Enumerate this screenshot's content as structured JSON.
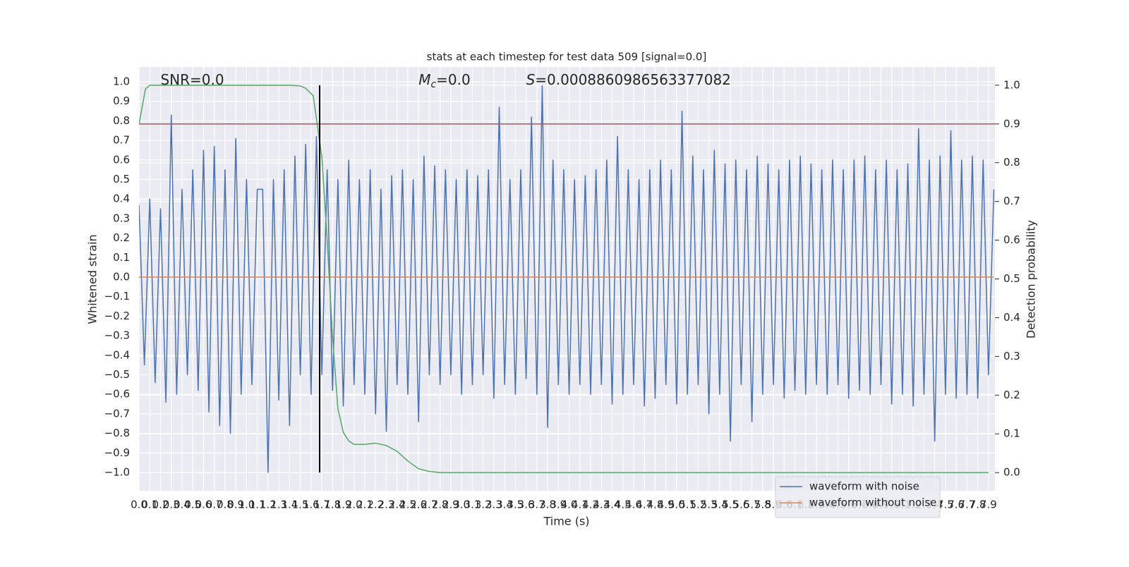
{
  "chart_data": {
    "type": "line",
    "title": "stats at each timestep for test data 509 [signal=0.0]",
    "xlabel": "Time (s)",
    "ylabel": "Whitened strain",
    "y2label": "Detection probability",
    "annotations": [
      {
        "text": "SNR=0.0",
        "x": 0.2,
        "y": 1.0
      },
      {
        "symbol": "M",
        "subscript": "c",
        "text": "=0.0",
        "x": 2.6,
        "y": 1.0
      },
      {
        "symbol": "S",
        "text": "=0.0008860986563377082",
        "x": 3.6,
        "y": 1.0
      }
    ],
    "xlim": [
      0,
      7.96
    ],
    "ylim": [
      -1.094,
      1.076
    ],
    "y2lim": [
      -0.047,
      1.047
    ],
    "xticks": [
      {
        "value": 0,
        "label": "0.0"
      },
      0.1,
      0.2,
      0.3,
      0.4,
      0.5,
      0.6,
      0.7,
      0.8,
      0.9,
      {
        "value": 1,
        "label": "1.0"
      },
      1.1,
      1.2,
      1.3,
      1.4,
      1.5,
      1.6,
      1.7,
      1.8,
      1.9,
      {
        "value": 2,
        "label": "2.0"
      },
      2.1,
      2.2,
      2.3,
      2.4,
      2.5,
      2.6,
      2.7,
      2.8,
      2.9,
      {
        "value": 3,
        "label": "3.0"
      },
      3.1,
      3.2,
      3.3,
      3.4,
      3.5,
      3.6,
      3.7,
      3.8,
      3.9,
      {
        "value": 4,
        "label": "4.0"
      },
      4.1,
      4.2,
      4.3,
      4.4,
      4.5,
      4.6,
      4.7,
      4.8,
      4.9,
      {
        "value": 5,
        "label": "5.0"
      },
      5.1,
      5.2,
      5.3,
      5.4,
      5.5,
      5.6,
      5.7,
      5.8,
      5.9,
      {
        "value": 6,
        "label": "6.0"
      },
      6.1,
      6.2,
      6.3,
      6.4,
      6.5,
      6.6,
      6.7,
      6.8,
      6.9,
      {
        "value": 7,
        "label": "7.0"
      },
      7.1,
      7.2,
      7.3,
      7.4,
      7.5,
      7.6,
      7.7,
      7.8,
      7.9
    ],
    "yticks": [
      {
        "value": -1,
        "label": "−1.0"
      },
      {
        "value": -0.9,
        "label": "−0.9"
      },
      {
        "value": -0.8,
        "label": "−0.8"
      },
      {
        "value": -0.7,
        "label": "−0.7"
      },
      {
        "value": -0.6,
        "label": "−0.6"
      },
      {
        "value": -0.5,
        "label": "−0.5"
      },
      {
        "value": -0.4,
        "label": "−0.4"
      },
      {
        "value": -0.3,
        "label": "−0.3"
      },
      {
        "value": -0.2,
        "label": "−0.2"
      },
      {
        "value": -0.1,
        "label": "−0.1"
      },
      {
        "value": 0,
        "label": "0.0"
      },
      0.1,
      0.2,
      0.3,
      0.4,
      0.5,
      0.6,
      0.7,
      0.8,
      0.9,
      {
        "value": 1,
        "label": "1.0"
      }
    ],
    "y2ticks": [
      {
        "value": 0,
        "label": "0.0"
      },
      0.1,
      0.2,
      0.3,
      0.4,
      0.5,
      0.6,
      0.7,
      0.8,
      0.9,
      {
        "value": 1,
        "label": "1.0"
      }
    ],
    "grid": true,
    "legend": "lower right",
    "hline": {
      "value": 0.9,
      "axis": "y2",
      "color": "#c44e52"
    },
    "vline": {
      "x": 1.68,
      "color": "#000000"
    },
    "series": [
      {
        "name": "waveform with noise",
        "color": "#4c72b0",
        "x": [
          0,
          0.05,
          0.1,
          0.15,
          0.2,
          0.25,
          0.3,
          0.35,
          0.4,
          0.45,
          0.5,
          0.55,
          0.6,
          0.65,
          0.7,
          0.75,
          0.8,
          0.85,
          0.9,
          0.95,
          1,
          1.05,
          1.1,
          1.15,
          1.2,
          1.25,
          1.3,
          1.35,
          1.4,
          1.45,
          1.5,
          1.55,
          1.6,
          1.65,
          1.7,
          1.75,
          1.8,
          1.85,
          1.9,
          1.95,
          2,
          2.05,
          2.1,
          2.15,
          2.2,
          2.25,
          2.3,
          2.35,
          2.4,
          2.45,
          2.5,
          2.55,
          2.6,
          2.65,
          2.7,
          2.75,
          2.8,
          2.85,
          2.9,
          2.95,
          3,
          3.05,
          3.1,
          3.15,
          3.2,
          3.25,
          3.3,
          3.35,
          3.4,
          3.45,
          3.5,
          3.55,
          3.6,
          3.65,
          3.7,
          3.75,
          3.8,
          3.85,
          3.9,
          3.95,
          4,
          4.05,
          4.1,
          4.15,
          4.2,
          4.25,
          4.3,
          4.35,
          4.4,
          4.45,
          4.5,
          4.55,
          4.6,
          4.65,
          4.7,
          4.75,
          4.8,
          4.85,
          4.9,
          4.95,
          5,
          5.05,
          5.1,
          5.15,
          5.2,
          5.25,
          5.3,
          5.35,
          5.4,
          5.45,
          5.5,
          5.55,
          5.6,
          5.65,
          5.7,
          5.75,
          5.8,
          5.85,
          5.9,
          5.95,
          6,
          6.05,
          6.1,
          6.15,
          6.2,
          6.25,
          6.3,
          6.35,
          6.4,
          6.45,
          6.5,
          6.55,
          6.6,
          6.65,
          6.7,
          6.75,
          6.8,
          6.85,
          6.9,
          6.95,
          7,
          7.05,
          7.1,
          7.15,
          7.2,
          7.25,
          7.3,
          7.35,
          7.4,
          7.45,
          7.5,
          7.55,
          7.6,
          7.65,
          7.7,
          7.75,
          7.8,
          7.85,
          7.9,
          7.95
        ],
        "values": [
          0.37,
          -0.45,
          0.4,
          -0.54,
          0.35,
          -0.64,
          0.83,
          -0.6,
          0.45,
          -0.5,
          0.55,
          -0.58,
          0.65,
          -0.69,
          0.67,
          -0.76,
          0.55,
          -0.8,
          0.71,
          -0.6,
          0.5,
          -0.55,
          0.45,
          0.45,
          -1.0,
          0.5,
          -0.63,
          0.55,
          -0.76,
          0.62,
          -0.5,
          0.68,
          -0.6,
          0.72,
          -0.5,
          0.55,
          -0.58,
          0.5,
          -0.66,
          0.6,
          -0.55,
          0.5,
          -0.6,
          0.55,
          -0.7,
          0.45,
          -0.79,
          0.52,
          -0.55,
          0.55,
          -0.6,
          0.5,
          -0.74,
          0.62,
          -0.5,
          0.57,
          -0.55,
          0.55,
          -0.5,
          0.5,
          -0.6,
          0.55,
          -0.55,
          0.52,
          -0.5,
          0.55,
          -0.62,
          0.87,
          -0.55,
          0.5,
          -0.6,
          0.55,
          -0.52,
          0.82,
          -0.6,
          0.98,
          -0.77,
          0.6,
          -0.55,
          0.55,
          -0.6,
          0.5,
          -0.55,
          0.52,
          -0.6,
          0.55,
          -0.55,
          0.6,
          -0.65,
          0.72,
          -0.6,
          0.55,
          -0.55,
          0.5,
          -0.66,
          0.55,
          -0.62,
          0.6,
          -0.55,
          0.55,
          -0.65,
          0.85,
          -0.6,
          0.62,
          -0.55,
          0.55,
          -0.7,
          0.65,
          -0.6,
          0.58,
          -0.84,
          0.6,
          -0.55,
          0.55,
          -0.74,
          0.62,
          -0.6,
          0.58,
          -0.55,
          0.55,
          -0.62,
          0.6,
          -0.58,
          0.62,
          -0.6,
          0.58,
          -0.55,
          0.55,
          -0.6,
          0.6,
          -0.55,
          0.55,
          -0.62,
          0.6,
          -0.58,
          0.62,
          -0.6,
          0.55,
          -0.55,
          0.6,
          -0.65,
          0.55,
          -0.6,
          0.58,
          -0.66,
          0.76,
          -0.6,
          0.6,
          -0.84,
          0.62,
          -0.6,
          0.75,
          -0.62,
          0.6,
          -0.6,
          0.62,
          -0.62,
          0.6,
          -0.5,
          0.45
        ]
      },
      {
        "name": "waveform without noise",
        "color": "#dd8452",
        "x": [
          0,
          7.95
        ],
        "values": [
          0,
          0
        ]
      },
      {
        "color": "#55a868",
        "axis": "y2",
        "x": [
          0,
          0.06,
          0.1,
          0.5,
          1,
          1.4,
          1.5,
          1.55,
          1.62,
          1.7,
          1.75,
          1.8,
          1.85,
          1.9,
          1.95,
          2,
          2.1,
          2.2,
          2.3,
          2.4,
          2.5,
          2.6,
          2.7,
          2.8,
          7.9
        ],
        "values": [
          0.9,
          0.99,
          1.0,
          1.0,
          1.0,
          1.0,
          0.998,
          0.992,
          0.973,
          0.816,
          0.6,
          0.35,
          0.164,
          0.104,
          0.082,
          0.073,
          0.073,
          0.076,
          0.07,
          0.055,
          0.03,
          0.01,
          0.003,
          0,
          0
        ]
      }
    ]
  }
}
